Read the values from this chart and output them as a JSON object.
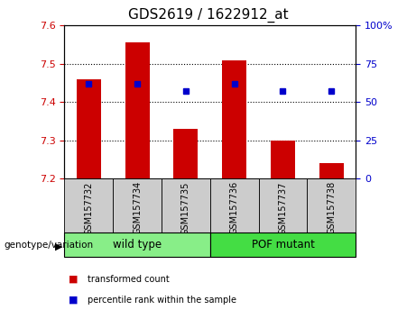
{
  "title": "GDS2619 / 1622912_at",
  "samples": [
    "GSM157732",
    "GSM157734",
    "GSM157735",
    "GSM157736",
    "GSM157737",
    "GSM157738"
  ],
  "red_values": [
    7.46,
    7.555,
    7.33,
    7.51,
    7.3,
    7.24
  ],
  "blue_pct": [
    62,
    62,
    57,
    62,
    57,
    57
  ],
  "baseline": 7.2,
  "ylim": [
    7.2,
    7.6
  ],
  "yticks": [
    7.2,
    7.3,
    7.4,
    7.5,
    7.6
  ],
  "y2lim": [
    0,
    100
  ],
  "y2ticks": [
    0,
    25,
    50,
    75,
    100
  ],
  "y2ticklabels": [
    "0",
    "25",
    "50",
    "75",
    "100%"
  ],
  "bar_color": "#cc0000",
  "blue_color": "#0000cc",
  "groups": [
    {
      "label": "wild type",
      "start": 0,
      "end": 3,
      "color": "#88ee88"
    },
    {
      "label": "POF mutant",
      "start": 3,
      "end": 6,
      "color": "#44dd44"
    }
  ],
  "group_label": "genotype/variation",
  "legend_items": [
    {
      "label": "transformed count",
      "color": "#cc0000"
    },
    {
      "label": "percentile rank within the sample",
      "color": "#0000cc"
    }
  ],
  "title_fontsize": 11,
  "tick_color_left": "#cc0000",
  "tick_color_right": "#0000cc",
  "bar_width": 0.5,
  "sample_box_color": "#cccccc",
  "grid_lines": [
    7.3,
    7.4,
    7.5
  ]
}
